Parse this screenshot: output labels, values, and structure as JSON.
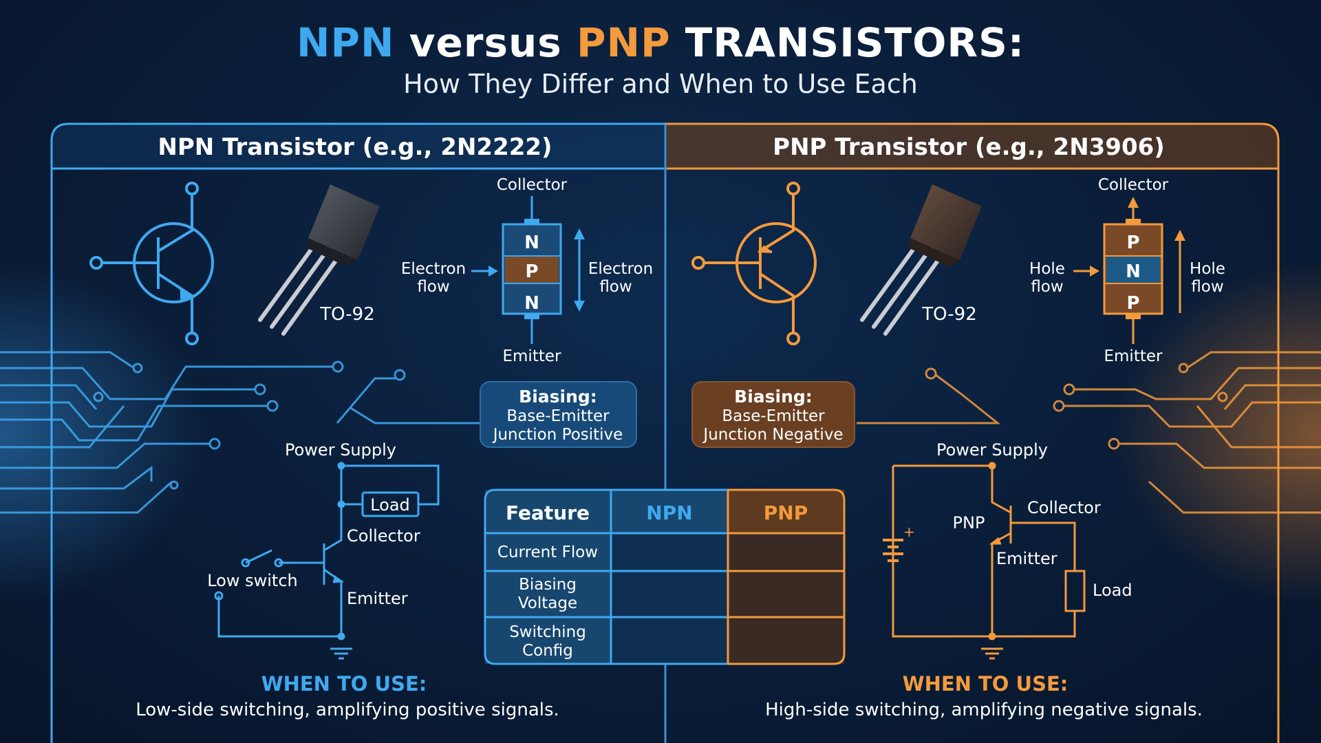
{
  "title": {
    "part1": "NPN",
    "part2": " versus ",
    "part3": "PNP",
    "part4": " TRANSISTORS:"
  },
  "subtitle": "How They Differ and When to Use Each",
  "colors": {
    "npn_accent": "#3fa9f0",
    "pnp_accent": "#f39a3c",
    "background": "#0a1d38"
  },
  "npn": {
    "header": "NPN Transistor (e.g., 2N2222)",
    "package": "TO-92",
    "layers": [
      "N",
      "P",
      "N"
    ],
    "collector": "Collector",
    "emitter": "Emitter",
    "flow_left": [
      "Electron",
      "flow"
    ],
    "flow_right": [
      "Electron",
      "flow"
    ],
    "biasing": [
      "Biasing:",
      "Base-Emitter",
      "Junction Positive"
    ],
    "circuit": {
      "power": "Power Supply",
      "load": "Load",
      "collector": "Collector",
      "emitter": "Emitter",
      "switch": "Low switch"
    },
    "when_title": "WHEN TO USE:",
    "when_text": "Low-side switching, amplifying positive signals."
  },
  "pnp": {
    "header": "PNP Transistor (e.g., 2N3906)",
    "package": "TO-92",
    "layers": [
      "P",
      "N",
      "P"
    ],
    "collector": "Collector",
    "emitter": "Emitter",
    "flow_left": [
      "Hole",
      "flow"
    ],
    "flow_right": [
      "Hole",
      "flow"
    ],
    "biasing": [
      "Biasing:",
      "Base-Emitter",
      "Junction Negative"
    ],
    "circuit": {
      "power": "Power Supply",
      "pnp": "PNP",
      "collector": "Collector",
      "emitter": "Emitter",
      "load": "Load",
      "battery_plus": "+"
    },
    "when_title": "WHEN TO USE:",
    "when_text": "High-side switching, amplifying negative signals."
  },
  "table": {
    "headers": [
      "Feature",
      "NPN",
      "PNP"
    ],
    "rows": [
      [
        "Current Flow"
      ],
      [
        "Biasing",
        "Voltage"
      ],
      [
        "Switching",
        "Config"
      ]
    ]
  }
}
